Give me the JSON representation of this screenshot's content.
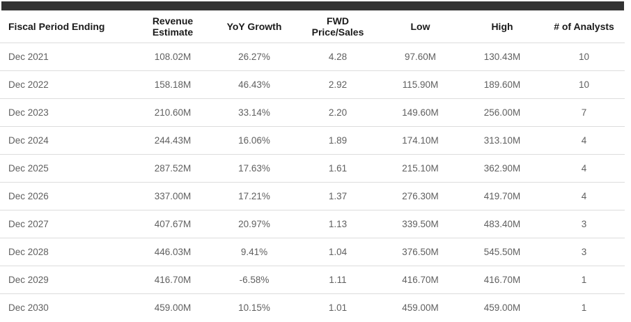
{
  "colors": {
    "accent_bar": "#333333",
    "header_text": "#1b1b1b",
    "data_text": "#606060",
    "divider": "#dcdcdc",
    "background": "#ffffff"
  },
  "table": {
    "columns": [
      {
        "key": "fiscal_period",
        "label": "Fiscal Period Ending"
      },
      {
        "key": "revenue_estimate",
        "label": "Revenue\nEstimate"
      },
      {
        "key": "yoy_growth",
        "label": "YoY Growth"
      },
      {
        "key": "fwd_price_sales",
        "label": "FWD\nPrice/Sales"
      },
      {
        "key": "low",
        "label": "Low"
      },
      {
        "key": "high",
        "label": "High"
      },
      {
        "key": "num_analysts",
        "label": "# of Analysts"
      }
    ],
    "rows": [
      [
        "Dec 2021",
        "108.02M",
        "26.27%",
        "4.28",
        "97.60M",
        "130.43M",
        "10"
      ],
      [
        "Dec 2022",
        "158.18M",
        "46.43%",
        "2.92",
        "115.90M",
        "189.60M",
        "10"
      ],
      [
        "Dec 2023",
        "210.60M",
        "33.14%",
        "2.20",
        "149.60M",
        "256.00M",
        "7"
      ],
      [
        "Dec 2024",
        "244.43M",
        "16.06%",
        "1.89",
        "174.10M",
        "313.10M",
        "4"
      ],
      [
        "Dec 2025",
        "287.52M",
        "17.63%",
        "1.61",
        "215.10M",
        "362.90M",
        "4"
      ],
      [
        "Dec 2026",
        "337.00M",
        "17.21%",
        "1.37",
        "276.30M",
        "419.70M",
        "4"
      ],
      [
        "Dec 2027",
        "407.67M",
        "20.97%",
        "1.13",
        "339.50M",
        "483.40M",
        "3"
      ],
      [
        "Dec 2028",
        "446.03M",
        "9.41%",
        "1.04",
        "376.50M",
        "545.50M",
        "3"
      ],
      [
        "Dec 2029",
        "416.70M",
        "-6.58%",
        "1.11",
        "416.70M",
        "416.70M",
        "1"
      ],
      [
        "Dec 2030",
        "459.00M",
        "10.15%",
        "1.01",
        "459.00M",
        "459.00M",
        "1"
      ]
    ]
  }
}
